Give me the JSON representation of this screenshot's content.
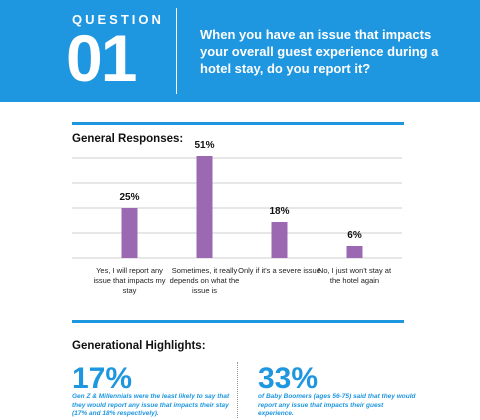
{
  "header": {
    "label": "QUESTION",
    "number": "01",
    "question": "When you have an issue that impacts your overall guest experience during a hotel stay, do you report it?"
  },
  "chart_data": {
    "type": "bar",
    "title": "General Responses:",
    "categories": [
      "Yes, I will report any issue that impacts my stay",
      "Sometimes, it really depends on what the issue is",
      "Only if it's a severe issue",
      "No, I just won't stay at the hotel again"
    ],
    "values": [
      25,
      51,
      18,
      6
    ],
    "value_labels": [
      "25%",
      "51%",
      "18%",
      "6%"
    ],
    "color": "#9b69b1",
    "ylim": [
      0,
      50
    ],
    "gridlines": [
      0,
      12.5,
      25,
      37.5,
      50
    ]
  },
  "highlights": {
    "title": "Generational Highlights:",
    "items": [
      {
        "stat": "17%",
        "text": "Gen Z & Millennials were the least likely to say that they would report any issue that impacts their stay (17% and 18% respectively)."
      },
      {
        "stat": "33%",
        "text": "of Baby Boomers (ages 56-75) said that they would report any issue that impacts their guest experience."
      }
    ]
  }
}
